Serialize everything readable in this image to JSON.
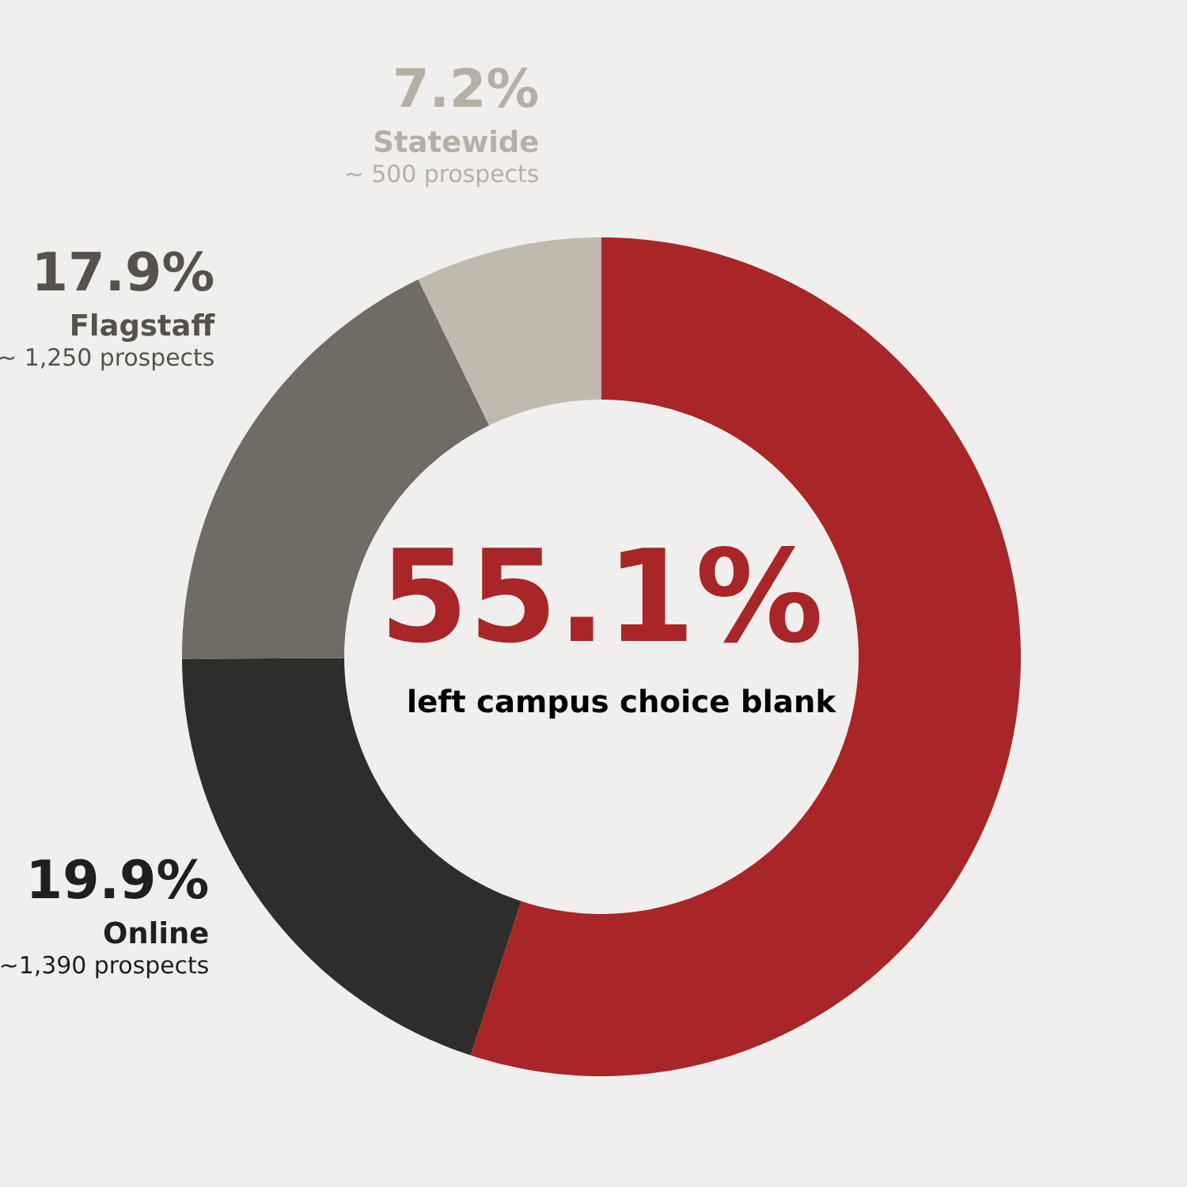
{
  "chart_data": {
    "type": "donut",
    "categories": [
      "left campus choice blank",
      "Online",
      "Flagstaff",
      "Statewide"
    ],
    "values": [
      55.1,
      19.9,
      17.9,
      7.2
    ],
    "colors": [
      "#a82628",
      "#2f2d2b",
      "#6f6b65",
      "#c0b9ae"
    ],
    "value_labels": [
      "55.1%",
      "19.9%",
      "17.9%",
      "7.2%"
    ],
    "annotations": [
      "~1,390 prospects",
      "~ 1,250 prospects",
      "~ 500 prospects"
    ]
  }
}
